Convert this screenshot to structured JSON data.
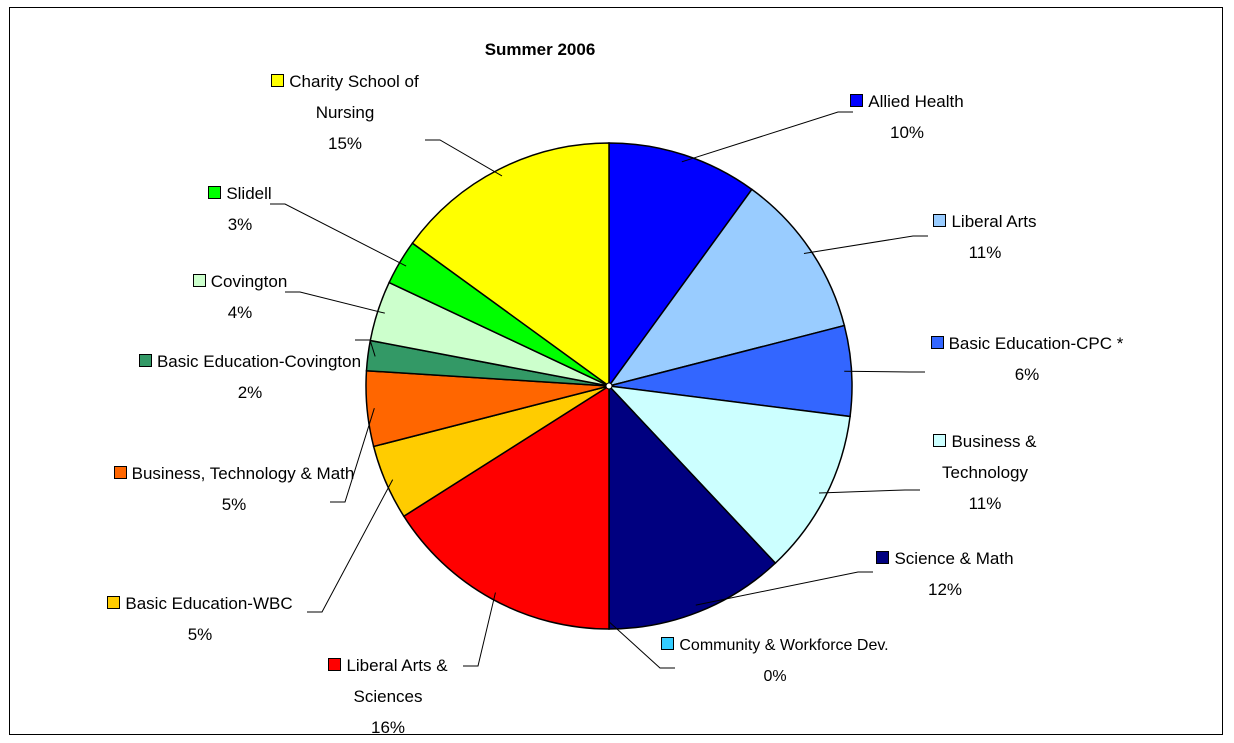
{
  "chart_data": {
    "type": "pie",
    "title": "Summer 2006",
    "categories": [
      "Allied Health",
      "Liberal Arts",
      "Basic Education-CPC *",
      "Business & Technology",
      "Science & Math",
      "Community & Workforce Dev.",
      "Liberal Arts & Sciences",
      "Basic Education-WBC",
      "Business, Technology & Math",
      "Basic Education-Covington",
      "Covington",
      "Slidell",
      "Charity School of Nursing"
    ],
    "values": [
      10,
      11,
      6,
      11,
      12,
      0,
      16,
      5,
      5,
      2,
      4,
      3,
      15
    ],
    "value_labels": [
      "10%",
      "11%",
      "6%",
      "11%",
      "12%",
      "0%",
      "16%",
      "5%",
      "5%",
      "2%",
      "4%",
      "3%",
      "15%"
    ],
    "colors": [
      "#0000ff",
      "#99ccff",
      "#3366ff",
      "#ccffff",
      "#000080",
      "#33ccff",
      "#ff0000",
      "#ffcc00",
      "#ff6600",
      "#339966",
      "#ccffcc",
      "#00ff00",
      "#ffff00"
    ]
  }
}
